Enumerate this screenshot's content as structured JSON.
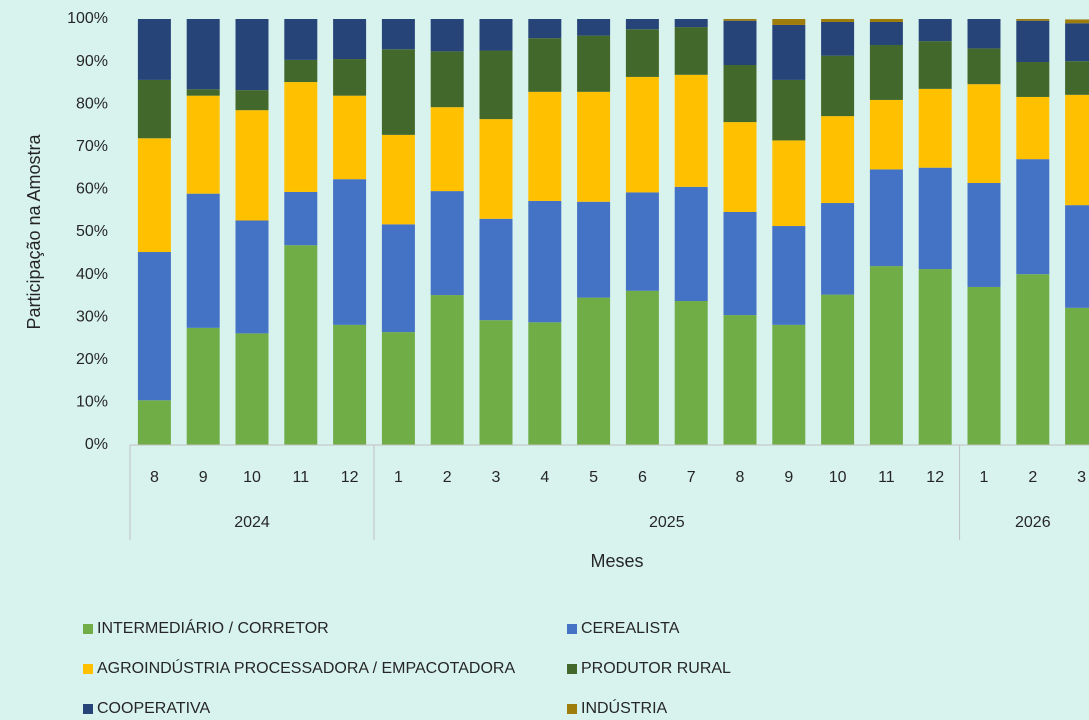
{
  "chart_data": {
    "type": "stacked_bar",
    "y_axis_label": "Participação na Amostra",
    "x_axis_label": "Meses",
    "categories": [
      "8",
      "9",
      "10",
      "11",
      "12",
      "1",
      "2",
      "3",
      "4",
      "5",
      "6",
      "7",
      "8",
      "9",
      "10",
      "11",
      "12",
      "1",
      "2",
      "3"
    ],
    "year_groups": [
      "2024",
      null,
      null,
      null,
      null,
      "2025",
      null,
      null,
      null,
      null,
      null,
      null,
      null,
      null,
      null,
      null,
      null,
      "2026",
      null,
      null
    ],
    "ylim": [
      0,
      100
    ],
    "yticks": [
      {
        "value": 0,
        "label": "0%"
      },
      {
        "value": 10,
        "label": "10%"
      },
      {
        "value": 20,
        "label": "20%"
      },
      {
        "value": 30,
        "label": "30%"
      },
      {
        "value": 40,
        "label": "40%"
      },
      {
        "value": 50,
        "label": "50%"
      },
      {
        "value": 60,
        "label": "60%"
      },
      {
        "value": 70,
        "label": "70%"
      },
      {
        "value": 80,
        "label": "80%"
      },
      {
        "value": 90,
        "label": "90%"
      },
      {
        "value": 100,
        "label": "100%"
      }
    ],
    "grid": false,
    "series": [
      {
        "name": "INTERMEDIÁRIO / CORRETOR",
        "color": "#70ad47",
        "values": [
          10.5,
          27.5,
          26.2,
          46.9,
          28.2,
          26.5,
          35.2,
          29.3,
          28.8,
          34.6,
          36.2,
          33.8,
          30.5,
          28.2,
          35.3,
          42,
          41.3,
          37.1,
          40.1,
          32.2
        ]
      },
      {
        "name": "CEREALISTA",
        "color": "#4472c4",
        "values": [
          34.8,
          31.5,
          26.5,
          12.5,
          34.2,
          25.3,
          24.4,
          23.8,
          28.5,
          22.5,
          23.1,
          26.8,
          24.2,
          23.2,
          21.5,
          22.7,
          23.8,
          24.4,
          27,
          24.1
        ]
      },
      {
        "name": "AGROINDÚSTRIA PROCESSADORA / EMPACOTADORA",
        "color": "#ffc000",
        "values": [
          26.7,
          23,
          25.9,
          25.8,
          19.6,
          21,
          19.7,
          23.4,
          25.6,
          25.8,
          27.1,
          26.3,
          21.1,
          20.1,
          20.4,
          16.3,
          18.5,
          23.2,
          14.6,
          25.9
        ]
      },
      {
        "name": "PRODUTOR RURAL",
        "color": "#43682b",
        "values": [
          13.7,
          1.5,
          4.7,
          5.2,
          8.6,
          20.1,
          13.1,
          16.1,
          12.6,
          13.2,
          11.2,
          11.2,
          13.4,
          14.2,
          14.2,
          12.9,
          11.2,
          8.4,
          8.2,
          7.9
        ]
      },
      {
        "name": "COOPERATIVA",
        "color": "#264478",
        "values": [
          14.3,
          16.5,
          16.7,
          9.6,
          9.4,
          7.1,
          7.6,
          7.4,
          4.5,
          3.9,
          2.4,
          1.9,
          10.4,
          12.9,
          7.9,
          5.4,
          5.2,
          6.9,
          9.7,
          8.9
        ]
      },
      {
        "name": "INDÚSTRIA",
        "color": "#9e7d0d",
        "values": [
          0,
          0,
          0,
          0,
          0,
          0,
          0,
          0,
          0,
          0,
          0,
          0,
          0.4,
          1.4,
          0.7,
          0.7,
          0,
          0,
          0.4,
          0.9
        ]
      }
    ]
  }
}
